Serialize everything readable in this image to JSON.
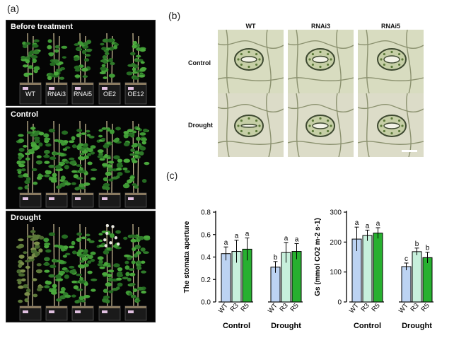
{
  "panels": {
    "a": {
      "letter": "(a)",
      "sections": [
        {
          "title": "Before treatment",
          "pot_labels": [
            "WT",
            "RNAi3",
            "RNAi5",
            "OE2",
            "OE12"
          ]
        },
        {
          "title": "Control",
          "pot_labels": [
            "",
            "",
            "",
            "",
            ""
          ]
        },
        {
          "title": "Drought",
          "pot_labels": [
            "",
            "",
            "",
            "",
            ""
          ]
        }
      ]
    },
    "b": {
      "letter": "(b)",
      "columns": [
        "WT",
        "RNAi3",
        "RNAi5"
      ],
      "rows": [
        "Control",
        "Drought"
      ]
    },
    "c": {
      "letter": "(c)"
    }
  },
  "chart_data": [
    {
      "type": "bar",
      "ylabel": "The stomata aperture",
      "ylim": [
        0.0,
        0.8
      ],
      "yticks": [
        "0.0",
        "0.2",
        "0.4",
        "0.6",
        "0.8"
      ],
      "groups": [
        "Control",
        "Drought"
      ],
      "categories": [
        "WT",
        "R3",
        "R5"
      ],
      "series": [
        {
          "group": "Control",
          "values": [
            0.43,
            0.45,
            0.47
          ],
          "errors": [
            0.06,
            0.1,
            0.1
          ],
          "letters": [
            "a",
            "a",
            "a"
          ]
        },
        {
          "group": "Drought",
          "values": [
            0.31,
            0.44,
            0.45
          ],
          "errors": [
            0.05,
            0.09,
            0.07
          ],
          "letters": [
            "b",
            "a",
            "a"
          ]
        }
      ],
      "colors": [
        "#bcd3f2",
        "#c7f0dc",
        "#27b030"
      ]
    },
    {
      "type": "bar",
      "ylabel": "Gs (mmol CO2 m-2 s-1)",
      "ylim": [
        0,
        300
      ],
      "yticks": [
        "0",
        "100",
        "200",
        "300"
      ],
      "groups": [
        "Control",
        "Drought"
      ],
      "categories": [
        "WT",
        "R3",
        "R5"
      ],
      "series": [
        {
          "group": "Control",
          "values": [
            210,
            222,
            230
          ],
          "errors": [
            40,
            18,
            18
          ],
          "letters": [
            "a",
            "a",
            "a"
          ]
        },
        {
          "group": "Drought",
          "values": [
            118,
            168,
            148
          ],
          "errors": [
            12,
            12,
            18
          ],
          "letters": [
            "c",
            "b",
            "b"
          ]
        }
      ],
      "colors": [
        "#bcd3f2",
        "#c7f0dc",
        "#27b030"
      ]
    }
  ]
}
